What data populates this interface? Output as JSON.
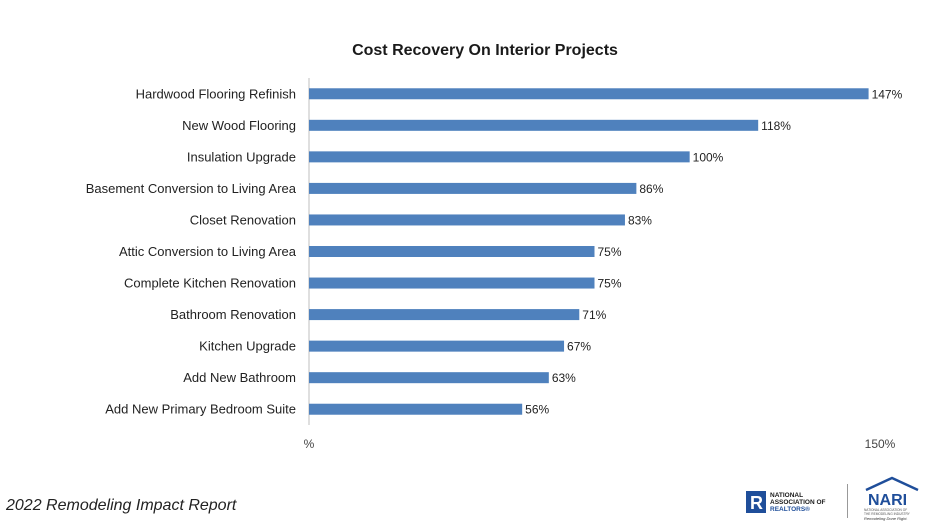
{
  "chart_data": {
    "type": "bar",
    "orientation": "horizontal",
    "title": "Cost Recovery On Interior Projects",
    "categories": [
      "Hardwood Flooring Refinish",
      "New Wood Flooring",
      "Insulation Upgrade",
      "Basement Conversion to Living Area",
      "Closet Renovation",
      "Attic Conversion to Living Area",
      "Complete Kitchen Renovation",
      "Bathroom Renovation",
      "Kitchen Upgrade",
      "Add New Bathroom",
      "Add New Primary Bedroom Suite"
    ],
    "values": [
      147,
      118,
      100,
      86,
      83,
      75,
      75,
      71,
      67,
      63,
      56
    ],
    "value_labels": [
      "147%",
      "118%",
      "100%",
      "86%",
      "83%",
      "75%",
      "75%",
      "71%",
      "67%",
      "63%",
      "56%"
    ],
    "xlim": [
      0,
      150
    ],
    "tick_labels": [
      "%",
      "150%"
    ],
    "bar_color": "#4f81bd",
    "grid": false
  },
  "footer": {
    "report_title": "2022 Remodeling Impact Report",
    "realtors_logo_text": [
      "NATIONAL",
      "ASSOCIATION OF",
      "REALTORS®"
    ],
    "nari_logo_text": "NARI",
    "nari_logo_subtext": [
      "NATIONAL ASSOCIATION OF",
      "THE REMODELING INDUSTRY",
      "Remodeling Done Right."
    ]
  }
}
